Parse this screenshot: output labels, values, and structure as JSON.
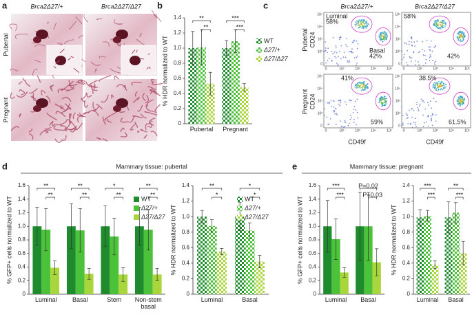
{
  "panel_labels": [
    "a",
    "b",
    "c",
    "d",
    "e"
  ],
  "panel_a": {
    "columns": [
      "Brca2Δ27/+",
      "Brca2Δ27/Δ27"
    ],
    "rows": [
      "Pubertal",
      "Pregnant"
    ]
  },
  "panel_c": {
    "columns": [
      "Brca2Δ27/+",
      "Brca2Δ27/Δ27"
    ],
    "rows": [
      "Pubertal",
      "Pregnant"
    ],
    "y_label": "CD24",
    "x_label": "CD49f",
    "ticks": [
      "0",
      "10²",
      "10³",
      "10⁴",
      "10⁵"
    ],
    "plots": [
      {
        "gates": [
          {
            "name": "Luminal",
            "percent": "58%"
          },
          {
            "name": "Basal",
            "percent": "42%"
          }
        ]
      },
      {
        "gates": [
          {
            "percent": "58%"
          },
          {
            "percent": "42%"
          }
        ]
      },
      {
        "gates": [
          {
            "percent": "41%"
          },
          {
            "percent": "59%"
          }
        ]
      },
      {
        "gates": [
          {
            "percent": "38.5%"
          },
          {
            "percent": "61.5%"
          }
        ]
      }
    ]
  },
  "sections": {
    "d": "Mammary tissue: pubertal",
    "e": "Mammary tissue: pregnant"
  },
  "chart_data": [
    {
      "type": "bar",
      "fill_style": "checkered",
      "legend": "outside right",
      "y_label": "% HDR normalized to WT",
      "categories": [
        "Pubertal",
        "Pregnant"
      ],
      "ylim": [
        0,
        1.4
      ],
      "yticks": [
        0,
        0.2,
        0.4,
        0.6,
        0.8,
        {
          "value": 1,
          "label": "1.0"
        },
        1.2,
        1.4
      ],
      "series": [
        {
          "name": "WT",
          "color": "#1e8c2c",
          "values": [
            1.0,
            1.0
          ],
          "errors": [
            0.22,
            0.1
          ]
        },
        {
          "name": "Δ27/+",
          "color": "#4cc23a",
          "values": [
            1.01,
            1.09
          ],
          "errors": [
            0.23,
            0.15
          ]
        },
        {
          "name": "Δ27/Δ27",
          "color": "#a9d63b",
          "values": [
            0.53,
            0.48
          ],
          "errors": [
            0.15,
            0.05
          ]
        }
      ],
      "annotations": [
        [
          "**",
          "**"
        ],
        [
          "***",
          "***"
        ]
      ]
    },
    {
      "type": "bar",
      "fill_style": "solid",
      "legend": "upper right",
      "y_label": "% GFP+ cells normalized to WT",
      "categories": [
        "Luminal",
        "Basal",
        "Stem",
        "Non-stem basal"
      ],
      "ylim": [
        0,
        1.6
      ],
      "yticks": [
        0,
        0.2,
        0.4,
        0.6,
        0.8,
        {
          "value": 1,
          "label": "1.0"
        },
        1.2,
        1.4,
        1.6
      ],
      "series": [
        {
          "name": "WT",
          "color": "#1e8c2c",
          "values": [
            1.0,
            1.0,
            1.0,
            1.0
          ],
          "errors": [
            0.28,
            0.33,
            0.3,
            0.28
          ]
        },
        {
          "name": "Δ27/+",
          "color": "#4cc23a",
          "values": [
            0.95,
            0.94,
            0.85,
            0.95
          ],
          "errors": [
            0.31,
            0.32,
            0.27,
            0.3
          ]
        },
        {
          "name": "Δ27/Δ27",
          "color": "#a9d63b",
          "values": [
            0.39,
            0.3,
            0.29,
            0.29
          ],
          "errors": [
            0.1,
            0.08,
            0.1,
            0.09
          ]
        }
      ],
      "annotations": [
        [
          "**",
          "**"
        ],
        [
          "**",
          "**"
        ],
        [
          "*",
          "**"
        ],
        [
          "**",
          "**"
        ]
      ]
    },
    {
      "type": "bar",
      "fill_style": "checkered",
      "legend": "upper right",
      "y_label": "% HDR normalized to WT",
      "categories": [
        "Luminal",
        "Basal"
      ],
      "ylim": [
        0,
        1.4
      ],
      "yticks": [
        0,
        0.2,
        0.4,
        0.6,
        0.8,
        {
          "value": 1,
          "label": "1.0"
        },
        1.2,
        1.4
      ],
      "series": [
        {
          "name": "WT",
          "color": "#1e8c2c",
          "values": [
            1.0,
            1.0
          ],
          "errors": [
            0.08,
            0.18
          ]
        },
        {
          "name": "Δ27/+",
          "color": "#4cc23a",
          "values": [
            0.88,
            0.82
          ],
          "errors": [
            0.08,
            0.1
          ]
        },
        {
          "name": "Δ27/Δ27",
          "color": "#a9d63b",
          "values": [
            0.55,
            0.42
          ],
          "errors": [
            0.04,
            0.08
          ]
        }
      ],
      "annotations": [
        [
          "**",
          "*"
        ],
        [
          "*",
          "*"
        ]
      ]
    },
    {
      "type": "bar",
      "fill_style": "solid",
      "y_label": "% GFP+ cells normalized to WT",
      "categories": [
        "Luminal",
        "Basal"
      ],
      "ylim": [
        0,
        1.6
      ],
      "yticks": [
        0,
        0.2,
        0.4,
        0.6,
        0.8,
        {
          "value": 1,
          "label": "1.0"
        },
        1.2,
        1.4,
        1.6
      ],
      "series": [
        {
          "name": "WT",
          "color": "#1e8c2c",
          "values": [
            1.0,
            1.0
          ],
          "errors": [
            0.38,
            0.5
          ]
        },
        {
          "name": "Δ27/+",
          "color": "#4cc23a",
          "values": [
            0.81,
            1.0
          ],
          "errors": [
            0.3,
            0.5
          ]
        },
        {
          "name": "Δ27/Δ27",
          "color": "#a9d63b",
          "values": [
            0.32,
            0.47
          ],
          "errors": [
            0.07,
            0.2
          ]
        }
      ],
      "annotations": [
        [
          "***",
          "***"
        ],
        [
          "P=0.02",
          "P=0.03"
        ]
      ]
    },
    {
      "type": "bar",
      "fill_style": "checkered",
      "y_label": "% HDR normalized to WT",
      "categories": [
        "Luminal",
        "Basal"
      ],
      "ylim": [
        0,
        1.4
      ],
      "yticks": [
        0,
        0.2,
        0.4,
        0.6,
        0.8,
        {
          "value": 1,
          "label": "1.0"
        },
        1.2,
        1.4
      ],
      "series": [
        {
          "name": "WT",
          "color": "#1e8c2c",
          "values": [
            0.99,
            0.99
          ],
          "errors": [
            0.1,
            0.2
          ]
        },
        {
          "name": "Δ27/+",
          "color": "#4cc23a",
          "values": [
            1.01,
            1.05
          ],
          "errors": [
            0.07,
            0.13
          ]
        },
        {
          "name": "Δ27/Δ27",
          "color": "#a9d63b",
          "values": [
            0.38,
            0.53
          ],
          "errors": [
            0.05,
            0.15
          ]
        }
      ],
      "annotations": [
        [
          "***",
          "***"
        ],
        [
          "**",
          "***"
        ]
      ]
    }
  ]
}
